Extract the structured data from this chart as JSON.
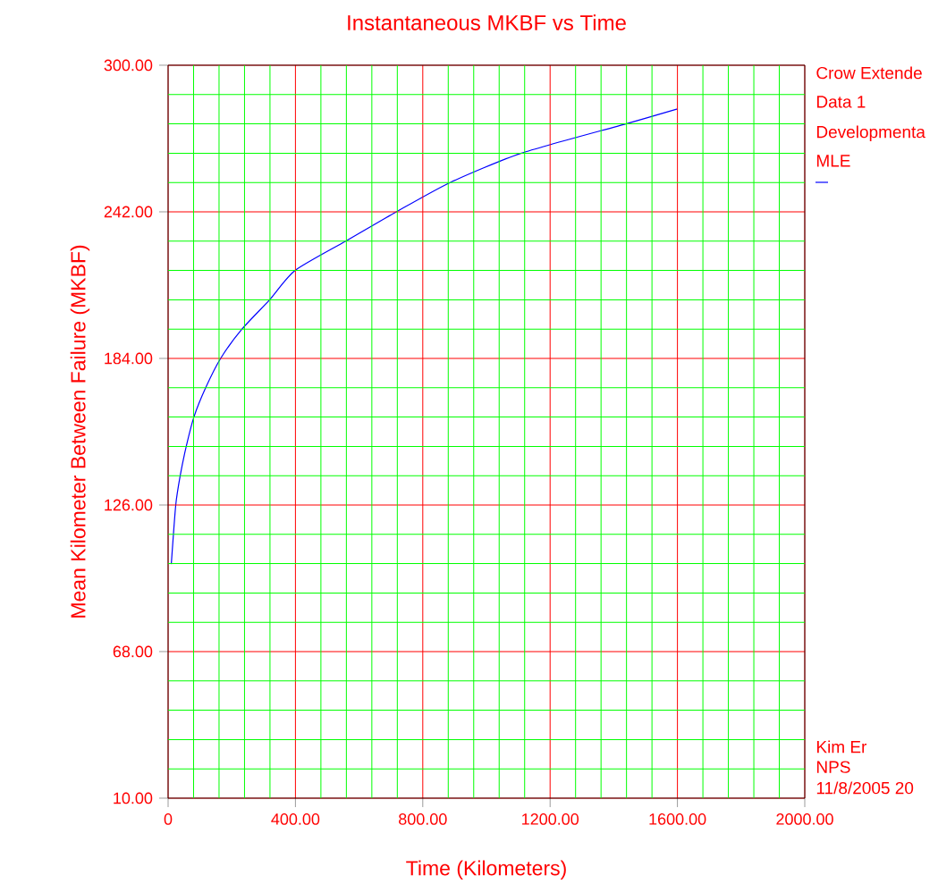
{
  "chart_data": {
    "type": "line",
    "title": "Instantaneous MKBF vs Time",
    "xlabel": "Time (Kilometers)",
    "ylabel": "Mean Kilometer Between Failure (MKBF)",
    "annotations": [
      "Crow Extende",
      "Data 1",
      "Developmenta",
      "MLE",
      "Kim Er",
      "NPS",
      "11/8/2005 20"
    ],
    "series": [
      {
        "color": "#0000ff",
        "x": [
          10,
          24,
          38,
          57,
          81,
          118,
          165,
          232,
          319,
          399,
          558,
          717,
          886,
          1110,
          1438,
          1600
        ],
        "values": [
          102.6,
          126,
          137.6,
          149.2,
          160.8,
          172.4,
          184,
          195.6,
          207.2,
          218.8,
          230.4,
          242,
          253.6,
          265.2,
          276.8,
          282.7
        ]
      }
    ],
    "xlim": [
      0,
      2000
    ],
    "ylim": [
      10,
      300
    ],
    "xticks": [
      0,
      {
        "value": 80,
        "label": null
      },
      {
        "value": 160,
        "label": null
      },
      {
        "value": 240,
        "label": null
      },
      {
        "value": 320,
        "label": null
      },
      {
        "value": 400,
        "label": "400.00"
      },
      {
        "value": 480,
        "label": null
      },
      {
        "value": 560,
        "label": null
      },
      {
        "value": 640,
        "label": null
      },
      {
        "value": 720,
        "label": null
      },
      {
        "value": 800,
        "label": "800.00"
      },
      {
        "value": 880,
        "label": null
      },
      {
        "value": 960,
        "label": null
      },
      {
        "value": 1040,
        "label": null
      },
      {
        "value": 1120,
        "label": null
      },
      {
        "value": 1200,
        "label": "1200.00"
      },
      {
        "value": 1280,
        "label": null
      },
      {
        "value": 1360,
        "label": null
      },
      {
        "value": 1440,
        "label": null
      },
      {
        "value": 1520,
        "label": null
      },
      {
        "value": 1600,
        "label": "1600.00"
      },
      {
        "value": 1680,
        "label": null
      },
      {
        "value": 1760,
        "label": null
      },
      {
        "value": 1840,
        "label": null
      },
      {
        "value": 1920,
        "label": null
      },
      {
        "value": 2000,
        "label": "2000.00"
      }
    ],
    "yticks": [
      {
        "value": 10,
        "label": "10.00"
      },
      {
        "value": 21.6,
        "label": null
      },
      {
        "value": 33.2,
        "label": null
      },
      {
        "value": 44.8,
        "label": null
      },
      {
        "value": 56.4,
        "label": null
      },
      {
        "value": 68,
        "label": "68.00"
      },
      {
        "value": 79.6,
        "label": null
      },
      {
        "value": 91.2,
        "label": null
      },
      {
        "value": 102.8,
        "label": null
      },
      {
        "value": 114.4,
        "label": null
      },
      {
        "value": 126,
        "label": "126.00"
      },
      {
        "value": 137.6,
        "label": null
      },
      {
        "value": 149.2,
        "label": null
      },
      {
        "value": 160.8,
        "label": null
      },
      {
        "value": 172.4,
        "label": null
      },
      {
        "value": 184,
        "label": "184.00"
      },
      {
        "value": 195.6,
        "label": null
      },
      {
        "value": 207.2,
        "label": null
      },
      {
        "value": 218.8,
        "label": null
      },
      {
        "value": 230.4,
        "label": null
      },
      {
        "value": 242,
        "label": "242.00"
      },
      {
        "value": 253.6,
        "label": null
      },
      {
        "value": 265.2,
        "label": null
      },
      {
        "value": 276.8,
        "label": null
      },
      {
        "value": 288.4,
        "label": null
      },
      {
        "value": 300,
        "label": "300.00"
      }
    ],
    "grid": true,
    "marker": "none",
    "line_style": "solid"
  }
}
